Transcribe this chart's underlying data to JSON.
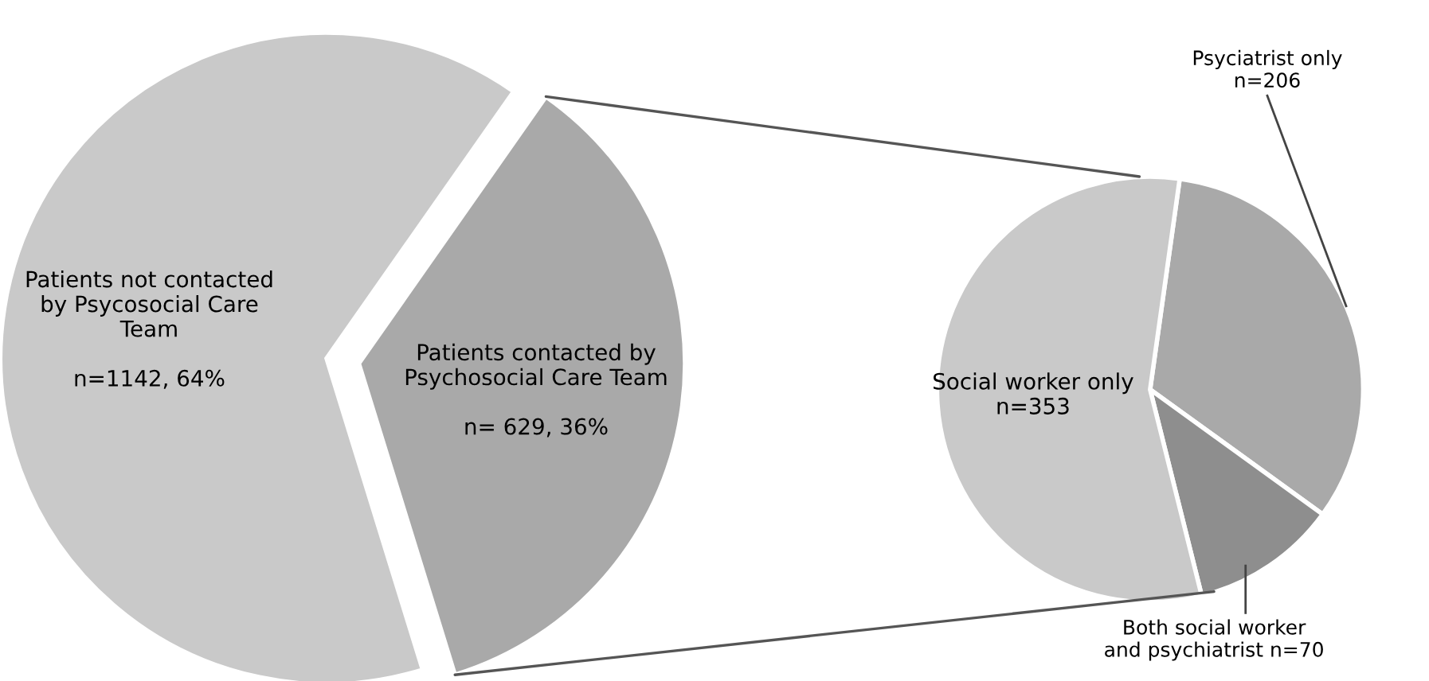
{
  "chart_data": [
    {
      "type": "pie",
      "categories": [
        "Patients not contacted\nby Psycosocial Care\nTeam",
        "Patients contacted by\nPsychosocial Care Team"
      ],
      "values": [
        1142,
        629
      ],
      "value_labels": [
        "n=1142, 64%",
        "n= 629, 36%"
      ],
      "colors": [
        "#c9c9c9",
        "#a9a9a9"
      ]
    },
    {
      "type": "pie",
      "categories": [
        "Psyciatrist only",
        "Both social worker\nand psychiatrist",
        "Social worker only"
      ],
      "values": [
        206,
        70,
        353
      ],
      "value_labels": [
        "n=206",
        "n=70",
        "n=353"
      ],
      "colors": [
        "#a9a9a9",
        "#8e8e8e",
        "#c9c9c9"
      ]
    }
  ]
}
